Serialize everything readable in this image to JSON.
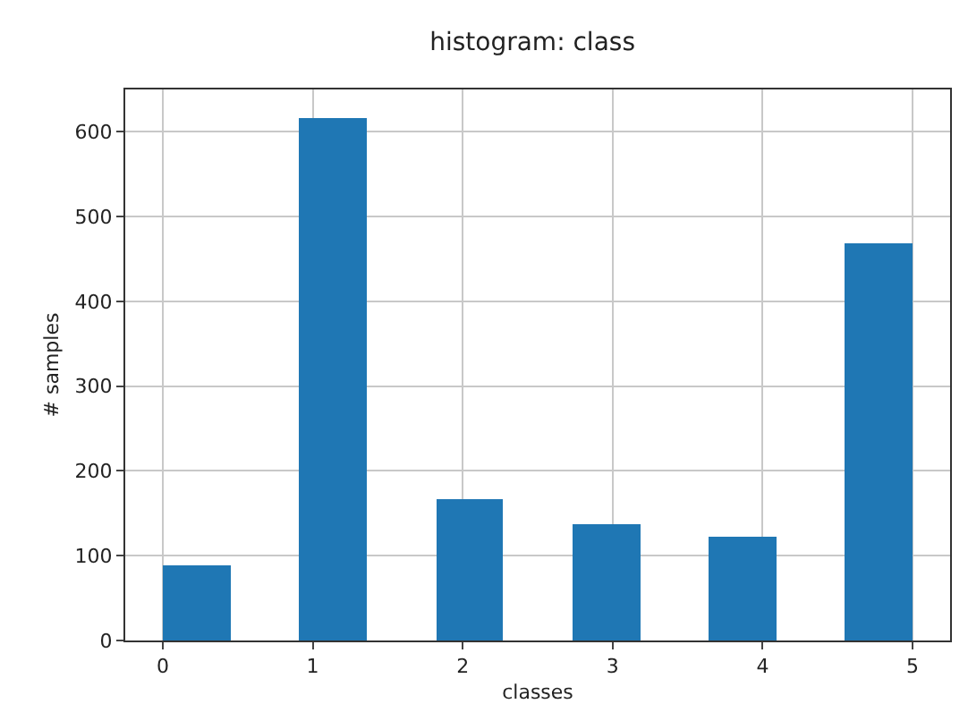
{
  "chart_data": {
    "type": "histogram",
    "title": "histogram: class",
    "xlabel": "classes",
    "ylabel": "# samples",
    "bins": [
      0,
      0.45,
      0.91,
      1.36,
      1.82,
      2.27,
      2.73,
      3.18,
      3.64,
      4.09,
      4.55,
      5
    ],
    "values": [
      88,
      0,
      616,
      0,
      166,
      0,
      137,
      0,
      123,
      0,
      468
    ],
    "color": "#1f77b4",
    "xlim": [
      -0.25,
      5.25
    ],
    "xticks": [
      0,
      1,
      2,
      3,
      4,
      5
    ],
    "ylim": [
      0,
      650
    ],
    "yticks": [
      0,
      100,
      200,
      300,
      400,
      500,
      600
    ],
    "grid": true
  }
}
